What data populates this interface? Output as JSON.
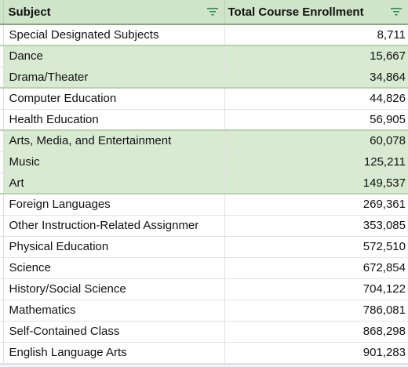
{
  "table": {
    "headers": {
      "subject": "Subject",
      "enrollment": "Total Course Enrollment"
    },
    "filter_icon": "filter-icon",
    "accent_color": "#2e8b57",
    "band_color": "#d9ead3",
    "rows": [
      {
        "subject": "Special Designated Subjects",
        "enrollment": "8,711",
        "band": false
      },
      {
        "subject": "Dance",
        "enrollment": "15,667",
        "band": true
      },
      {
        "subject": "Drama/Theater",
        "enrollment": "34,864",
        "band": true
      },
      {
        "subject": "Computer Education",
        "enrollment": "44,826",
        "band": false
      },
      {
        "subject": "Health Education",
        "enrollment": "56,905",
        "band": false
      },
      {
        "subject": "Arts, Media, and Entertainment",
        "enrollment": "60,078",
        "band": true
      },
      {
        "subject": "Music",
        "enrollment": "125,211",
        "band": true
      },
      {
        "subject": "Art",
        "enrollment": "149,537",
        "band": true
      },
      {
        "subject": "Foreign Languages",
        "enrollment": "269,361",
        "band": false
      },
      {
        "subject": "Other Instruction-Related Assignmer",
        "enrollment": "353,085",
        "band": false
      },
      {
        "subject": "Physical Education",
        "enrollment": "572,510",
        "band": false
      },
      {
        "subject": "Science",
        "enrollment": "672,854",
        "band": false
      },
      {
        "subject": "History/Social Science",
        "enrollment": "704,122",
        "band": false
      },
      {
        "subject": "Mathematics",
        "enrollment": "786,081",
        "band": false
      },
      {
        "subject": "Self-Contained Class",
        "enrollment": "868,298",
        "band": false
      },
      {
        "subject": "English Language Arts",
        "enrollment": "901,283",
        "band": false
      }
    ]
  }
}
